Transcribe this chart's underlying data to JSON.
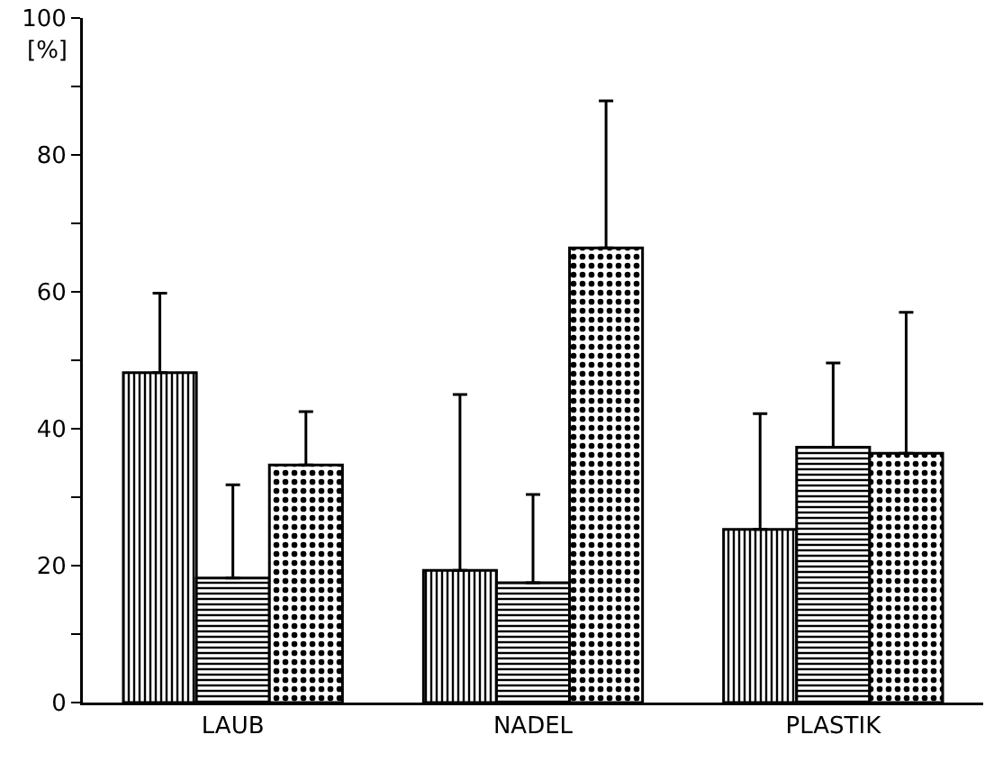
{
  "chart_data": {
    "type": "bar",
    "ylabel": "[%]",
    "categories": [
      "LAUB",
      "NADEL",
      "PLASTIK"
    ],
    "series": [
      {
        "color": "#000000",
        "values": [
          48.2,
          19.3,
          25.3
        ],
        "errors": [
          [
            48.2,
            59.8
          ],
          [
            19.3,
            45
          ],
          [
            25.3,
            42.2
          ]
        ]
      },
      {
        "color": "#000000",
        "values": [
          18.2,
          17.5,
          37.3
        ],
        "errors": [
          [
            18.2,
            31.8
          ],
          [
            17.5,
            30.4
          ],
          [
            37.3,
            49.6
          ]
        ]
      },
      {
        "color": "#000000",
        "values": [
          34.7,
          66.4,
          36.4
        ],
        "errors": [
          [
            34.7,
            42.5
          ],
          [
            66.4,
            87.9
          ],
          [
            36.4,
            57
          ]
        ]
      }
    ],
    "ylim": [
      0,
      100
    ],
    "yticks": [
      0,
      {
        "value": 10,
        "label": null
      },
      20,
      {
        "value": 30,
        "label": null
      },
      40,
      {
        "value": 50,
        "label": null
      },
      60,
      {
        "value": 70,
        "label": null
      },
      80,
      {
        "value": 90,
        "label": null
      },
      100
    ],
    "grid": false
  }
}
